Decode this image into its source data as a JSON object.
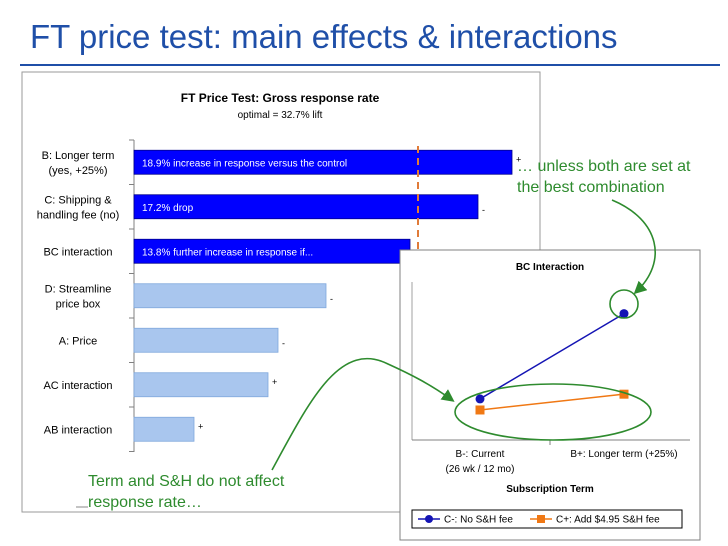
{
  "slide_title": "FT price test: main effects & interactions",
  "callouts": {
    "right": "… unless both are set at the best combination",
    "left": "Term and S&H do not affect response rate…"
  },
  "chart_data": [
    {
      "type": "bar",
      "orientation": "horizontal",
      "title": "FT Price Test: Gross response rate",
      "subtitle": "optimal = 32.7% lift",
      "categories": [
        "B: Longer term (yes, +25%)",
        "C: Shipping & handling fee (no)",
        "BC interaction",
        "D: Streamline price box",
        "A: Price",
        "AC interaction",
        "AB interaction"
      ],
      "category_lines": [
        [
          "B: Longer term",
          "(yes, +25%)"
        ],
        [
          "C: Shipping &",
          "handling fee (no)"
        ],
        [
          "BC interaction"
        ],
        [
          "D: Streamline",
          "price box"
        ],
        [
          "A: Price"
        ],
        [
          "AC interaction"
        ],
        [
          "AB interaction"
        ]
      ],
      "values": [
        18.9,
        17.2,
        13.8,
        9.6,
        7.2,
        6.7,
        3.0
      ],
      "xlim": [
        0,
        20
      ],
      "signs": [
        "+",
        "-",
        "",
        "-",
        "-",
        "+",
        "+"
      ],
      "bar_labels": [
        "18.9% increase in response versus the control",
        "17.2% drop",
        "13.8% further increase in response if...",
        "",
        "",
        "",
        ""
      ],
      "highlighted": [
        true,
        true,
        true,
        false,
        false,
        false,
        false
      ],
      "colors": {
        "highlight": "#0000ff",
        "normal": "#a9c6ee",
        "cutoff": "#e07b39"
      },
      "cutoff_value": 14.2
    },
    {
      "type": "line",
      "title": "BC Interaction",
      "xlabel": "Subscription Term",
      "categories": [
        "B-: Current",
        "B+: Longer term (+25%)"
      ],
      "category_sublabels": [
        "(26 wk / 12 mo)",
        ""
      ],
      "ylim": [
        0,
        10
      ],
      "series": [
        {
          "name": "C-: No S&H fee",
          "values": [
            2.6,
            8.0
          ],
          "color": "#1414b4",
          "marker": "circle"
        },
        {
          "name": "C+: Add $4.95 S&H fee",
          "values": [
            1.9,
            2.9
          ],
          "color": "#f07814",
          "marker": "square"
        }
      ]
    }
  ]
}
